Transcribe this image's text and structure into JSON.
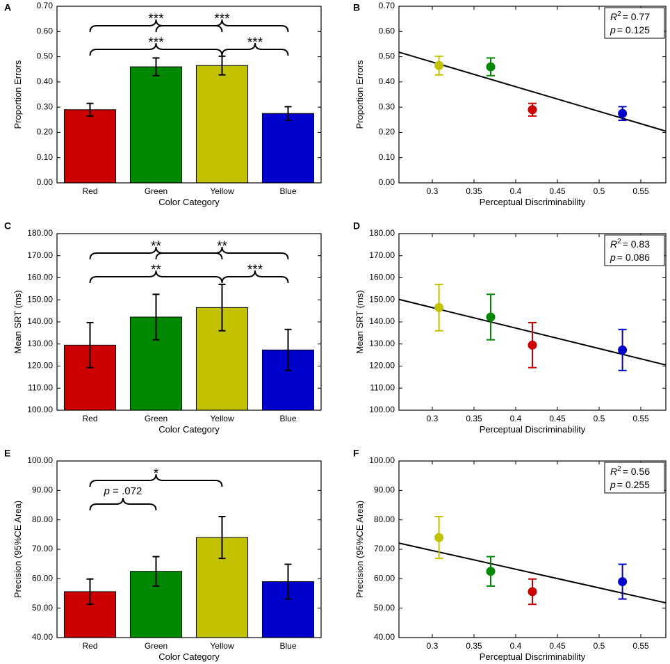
{
  "colors": {
    "Red": "#cc0000",
    "Green": "#008800",
    "Yellow": "#c2c200",
    "Blue": "#0000cc"
  },
  "chart_data": [
    {
      "panel": "A",
      "type": "bar",
      "categories": [
        "Red",
        "Green",
        "Yellow",
        "Blue"
      ],
      "values": [
        0.29,
        0.46,
        0.465,
        0.275
      ],
      "errors": [
        0.025,
        0.035,
        0.037,
        0.027
      ],
      "xlabel": "Color Category",
      "ylabel": "Proportion Errors",
      "ylim": [
        0,
        0.7
      ],
      "yticks": [
        "0.00",
        "0.10",
        "0.20",
        "0.30",
        "0.40",
        "0.50",
        "0.60",
        "0.70"
      ],
      "brackets": [
        {
          "from": 0,
          "to": 2,
          "label": "***",
          "level": 2
        },
        {
          "from": 1,
          "to": 3,
          "label": "***",
          "level": 2
        },
        {
          "from": 0,
          "to": 2,
          "label": "***",
          "level": 1
        },
        {
          "from": 2,
          "to": 3,
          "label": "***",
          "level": 1
        }
      ]
    },
    {
      "panel": "B",
      "type": "scatter",
      "categories": [
        "Red",
        "Green",
        "Yellow",
        "Blue"
      ],
      "x": [
        0.42,
        0.37,
        0.308,
        0.528
      ],
      "y": [
        0.29,
        0.46,
        0.465,
        0.275
      ],
      "errors": [
        0.025,
        0.035,
        0.037,
        0.027
      ],
      "fit": {
        "x": [
          0.26,
          0.58
        ],
        "y": [
          0.518,
          0.205
        ]
      },
      "xlabel": "Perceptual Discriminability",
      "ylabel": "Proportion Errors",
      "xlim": [
        0.26,
        0.58
      ],
      "ylim": [
        0,
        0.7
      ],
      "xticks": [
        0.3,
        0.35,
        0.4,
        0.45,
        0.5,
        0.55
      ],
      "xtick_labels": [
        "0.3",
        "0.35",
        "0.4",
        "0.45",
        "0.5",
        "0.55"
      ],
      "yticks": [
        "0.00",
        "0.10",
        "0.20",
        "0.30",
        "0.40",
        "0.50",
        "0.60",
        "0.70"
      ],
      "stats": {
        "r2_label": "R",
        "r2_sup": "2",
        "r2_value": "= 0.77",
        "p_label": "p",
        "p_value": "= 0.125"
      }
    },
    {
      "panel": "C",
      "type": "bar",
      "categories": [
        "Red",
        "Green",
        "Yellow",
        "Blue"
      ],
      "values": [
        129.5,
        142.2,
        146.5,
        127.3
      ],
      "errors": [
        10.2,
        10.3,
        10.5,
        9.3
      ],
      "xlabel": "Color Category",
      "ylabel": "Mean SRT (ms)",
      "ylim": [
        100,
        180
      ],
      "yticks": [
        "100.00",
        "110.00",
        "120.00",
        "130.00",
        "140.00",
        "150.00",
        "160.00",
        "170.00",
        "180.00"
      ],
      "brackets": [
        {
          "from": 0,
          "to": 2,
          "label": "**",
          "level": 2
        },
        {
          "from": 1,
          "to": 3,
          "label": "**",
          "level": 2
        },
        {
          "from": 0,
          "to": 2,
          "label": "**",
          "level": 1
        },
        {
          "from": 2,
          "to": 3,
          "label": "***",
          "level": 1
        }
      ]
    },
    {
      "panel": "D",
      "type": "scatter",
      "categories": [
        "Red",
        "Green",
        "Yellow",
        "Blue"
      ],
      "x": [
        0.42,
        0.37,
        0.308,
        0.528
      ],
      "y": [
        129.5,
        142.2,
        146.5,
        127.3
      ],
      "errors": [
        10.2,
        10.3,
        10.5,
        9.3
      ],
      "fit": {
        "x": [
          0.26,
          0.58
        ],
        "y": [
          150.2,
          120.5
        ]
      },
      "xlabel": "Perceptual Discriminability",
      "ylabel": "Mean SRT (ms)",
      "xlim": [
        0.26,
        0.58
      ],
      "ylim": [
        100,
        180
      ],
      "xticks": [
        0.3,
        0.35,
        0.4,
        0.45,
        0.5,
        0.55
      ],
      "xtick_labels": [
        "0.3",
        "0.35",
        "0.4",
        "0.45",
        "0.5",
        "0.55"
      ],
      "yticks": [
        "100.00",
        "110.00",
        "120.00",
        "130.00",
        "140.00",
        "150.00",
        "160.00",
        "170.00",
        "180.00"
      ],
      "stats": {
        "r2_label": "R",
        "r2_sup": "2",
        "r2_value": "= 0.83",
        "p_label": "p",
        "p_value": "= 0.086"
      }
    },
    {
      "panel": "E",
      "type": "bar",
      "categories": [
        "Red",
        "Green",
        "Yellow",
        "Blue"
      ],
      "values": [
        55.6,
        62.5,
        74.0,
        59.0
      ],
      "errors": [
        4.3,
        5.0,
        7.1,
        5.9
      ],
      "xlabel": "Color Category",
      "ylabel": "Precision (95%CE Area)",
      "ylim": [
        40,
        100
      ],
      "yticks": [
        "40.00",
        "50.00",
        "60.00",
        "70.00",
        "80.00",
        "90.00",
        "100.00"
      ],
      "brackets": [
        {
          "from": 0,
          "to": 2,
          "label": "*",
          "level": 2
        },
        {
          "from": 0,
          "to": 1,
          "label_italic": "p",
          "label": " = .072",
          "level": 1
        }
      ]
    },
    {
      "panel": "F",
      "type": "scatter",
      "categories": [
        "Red",
        "Green",
        "Yellow",
        "Blue"
      ],
      "x": [
        0.42,
        0.37,
        0.308,
        0.528
      ],
      "y": [
        55.6,
        62.5,
        74.0,
        59.0
      ],
      "errors": [
        4.3,
        5.0,
        7.1,
        5.9
      ],
      "fit": {
        "x": [
          0.26,
          0.58
        ],
        "y": [
          72.1,
          51.8
        ]
      },
      "xlabel": "Perceptual Discriminability",
      "ylabel": "Precision (95%CE Area)",
      "xlim": [
        0.26,
        0.58
      ],
      "ylim": [
        40,
        100
      ],
      "xticks": [
        0.3,
        0.35,
        0.4,
        0.45,
        0.5,
        0.55
      ],
      "xtick_labels": [
        "0.3",
        "0.35",
        "0.4",
        "0.45",
        "0.5",
        "0.55"
      ],
      "yticks": [
        "40.00",
        "50.00",
        "60.00",
        "70.00",
        "80.00",
        "90.00",
        "100.00"
      ],
      "stats": {
        "r2_label": "R",
        "r2_sup": "2",
        "r2_value": "= 0.56",
        "p_label": "p",
        "p_value": "= 0.255"
      }
    }
  ]
}
